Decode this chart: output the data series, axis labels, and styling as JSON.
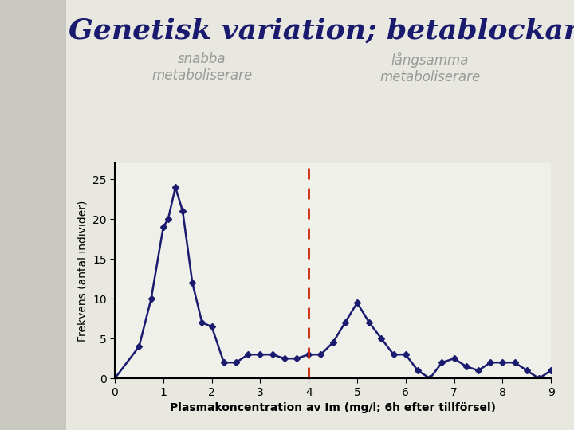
{
  "title": "Genetisk variation; betablockare",
  "ylabel": "Frekvens (antal individer)",
  "xlabel": "Plasmakoncentration av Im (mg/l; 6h efter tillförsel)",
  "label_snabba": "snabba\nmetaboliserare",
  "label_langsamma": "långsamma\nmetaboliserare",
  "dashed_line_x": 4.0,
  "x": [
    0.0,
    0.5,
    0.75,
    1.0,
    1.1,
    1.25,
    1.4,
    1.6,
    1.8,
    2.0,
    2.25,
    2.5,
    2.75,
    3.0,
    3.25,
    3.5,
    3.75,
    4.0,
    4.25,
    4.5,
    4.75,
    5.0,
    5.25,
    5.5,
    5.75,
    6.0,
    6.25,
    6.5,
    6.75,
    7.0,
    7.25,
    7.5,
    7.75,
    8.0,
    8.25,
    8.5,
    8.75,
    9.0
  ],
  "y": [
    0,
    4,
    10,
    19,
    20,
    24,
    21,
    12,
    7,
    6.5,
    2,
    2,
    3,
    3,
    3,
    2.5,
    2.5,
    3,
    3,
    4.5,
    7,
    9.5,
    7,
    5,
    3,
    3,
    1,
    0,
    2,
    2.5,
    1.5,
    1,
    2,
    2,
    2,
    1,
    0,
    1
  ],
  "line_color": "#1a1a6e",
  "marker": "D",
  "markersize": 4,
  "dashed_color": "#cc2200",
  "xlim": [
    0,
    9
  ],
  "ylim": [
    0,
    27
  ],
  "yticks": [
    0,
    5,
    10,
    15,
    20,
    25
  ],
  "xticks": [
    0,
    1,
    2,
    3,
    4,
    5,
    6,
    7,
    8,
    9
  ],
  "bg_color": "#e8e8e0",
  "plot_bg_color": "#f0f0ea",
  "title_color": "#1a1a6e",
  "title_fontsize": 26,
  "annotation_color": "#999999",
  "annotation_fontsize": 12,
  "axis_label_fontsize": 10,
  "tick_fontsize": 10,
  "left_panel_color": "#c8c8c0",
  "snabba_x": 1.8,
  "snabba_y": 25.5,
  "langsamma_x": 6.5,
  "langsamma_y": 25.5
}
